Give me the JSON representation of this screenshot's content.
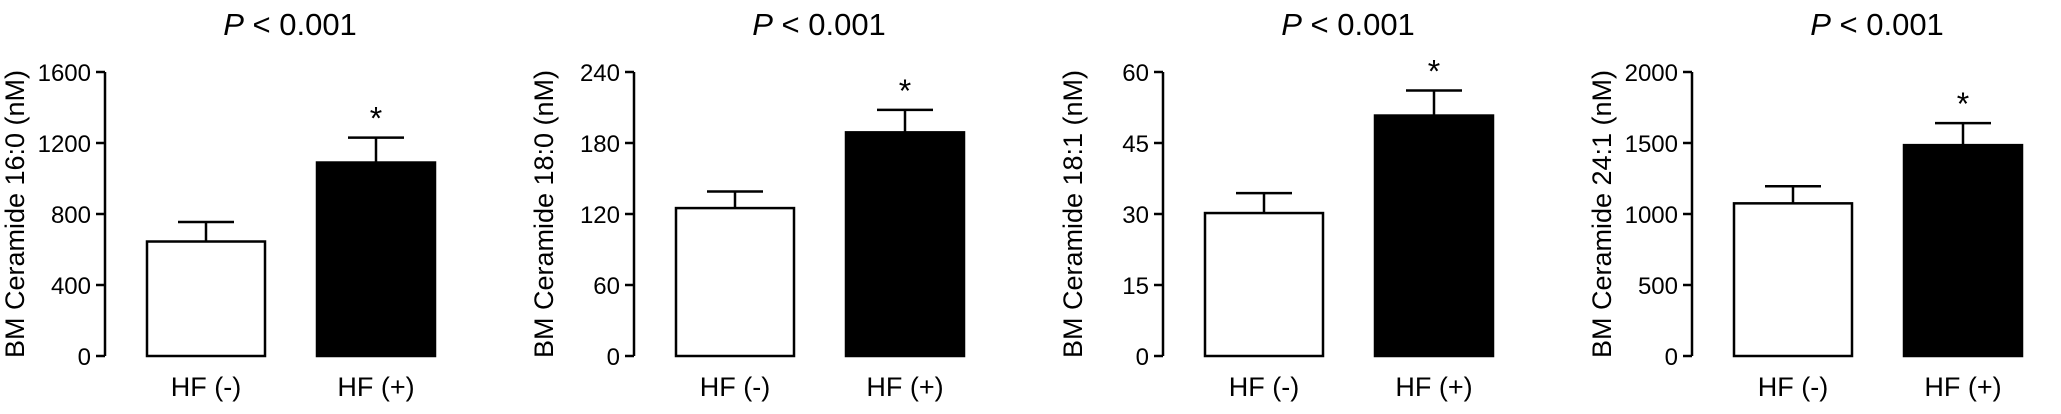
{
  "chart_data": [
    {
      "type": "bar",
      "title_italic": "P",
      "title_rest": " < 0.001",
      "ylabel": "BM Ceramide 16:0 (nM)",
      "categories": [
        "HF (-)",
        "HF (+)"
      ],
      "values": [
        645,
        1090
      ],
      "errors": [
        110,
        140
      ],
      "colors": [
        "#ffffff",
        "#000000"
      ],
      "significance": [
        "",
        "*"
      ],
      "yticks": [
        0,
        400,
        800,
        1200,
        1600
      ],
      "ylim": [
        0,
        1600
      ]
    },
    {
      "type": "bar",
      "title_italic": "P",
      "title_rest": " < 0.001",
      "ylabel": "BM Ceramide 18:0 (nM)",
      "categories": [
        "HF (-)",
        "HF (+)"
      ],
      "values": [
        125,
        189
      ],
      "errors": [
        14,
        19
      ],
      "colors": [
        "#ffffff",
        "#000000"
      ],
      "significance": [
        "",
        "*"
      ],
      "yticks": [
        0,
        60,
        120,
        180,
        240
      ],
      "ylim": [
        0,
        240
      ]
    },
    {
      "type": "bar",
      "title_italic": "P",
      "title_rest": " < 0.001",
      "ylabel": "BM Ceramide 18:1 (nM)",
      "categories": [
        "HF (-)",
        "HF (+)"
      ],
      "values": [
        30.2,
        50.8
      ],
      "errors": [
        4.2,
        5.3
      ],
      "colors": [
        "#ffffff",
        "#000000"
      ],
      "significance": [
        "",
        "*"
      ],
      "yticks": [
        0,
        15,
        30,
        45,
        60
      ],
      "ylim": [
        0,
        60
      ]
    },
    {
      "type": "bar",
      "title_italic": "P",
      "title_rest": " < 0.001",
      "ylabel": "BM Ceramide 24:1 (nM)",
      "categories": [
        "HF (-)",
        "HF (+)"
      ],
      "values": [
        1075,
        1485
      ],
      "errors": [
        120,
        155
      ],
      "colors": [
        "#ffffff",
        "#000000"
      ],
      "significance": [
        "",
        "*"
      ],
      "yticks": [
        0,
        500,
        1000,
        1500,
        2000
      ],
      "ylim": [
        0,
        2000
      ]
    }
  ]
}
